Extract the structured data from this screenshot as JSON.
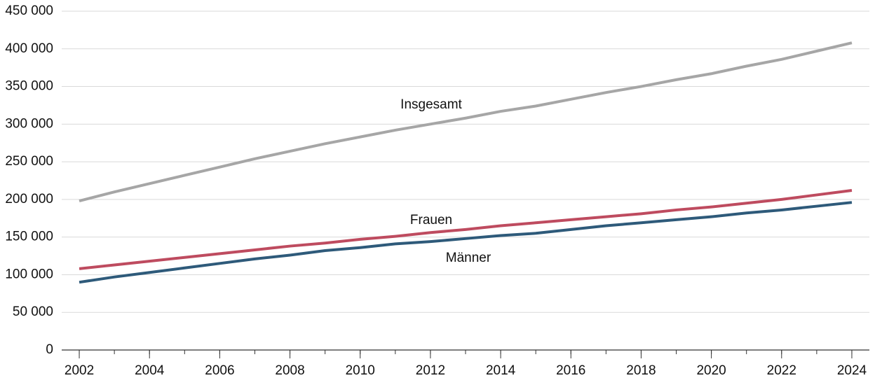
{
  "chart_data": {
    "type": "line",
    "x": [
      2002,
      2003,
      2004,
      2005,
      2006,
      2007,
      2008,
      2009,
      2010,
      2011,
      2012,
      2013,
      2014,
      2015,
      2016,
      2017,
      2018,
      2019,
      2020,
      2021,
      2022,
      2023,
      2024
    ],
    "series": [
      {
        "name": "Insgesamt",
        "color": "#a6a6a6",
        "values": [
          198000,
          210000,
          221000,
          232000,
          243000,
          254000,
          264000,
          274000,
          283000,
          292000,
          300000,
          308000,
          317000,
          324000,
          333000,
          342000,
          350000,
          359000,
          367000,
          377000,
          386000,
          397000,
          408000
        ]
      },
      {
        "name": "Frauen",
        "color": "#be4b5f",
        "values": [
          108000,
          113000,
          118000,
          123000,
          128000,
          133000,
          138000,
          142000,
          147000,
          151000,
          156000,
          160000,
          165000,
          169000,
          173000,
          177000,
          181000,
          186000,
          190000,
          195000,
          200000,
          206000,
          212000
        ]
      },
      {
        "name": "Männer",
        "color": "#2e5a7a",
        "values": [
          90000,
          97000,
          103000,
          109000,
          115000,
          121000,
          126000,
          132000,
          136000,
          141000,
          144000,
          148000,
          152000,
          155000,
          160000,
          165000,
          169000,
          173000,
          177000,
          182000,
          186000,
          191000,
          196000
        ]
      }
    ],
    "xlim": [
      2001.5,
      2024.5
    ],
    "xticks": [
      2002,
      2004,
      2006,
      2008,
      2010,
      2012,
      2014,
      2016,
      2018,
      2020,
      2022,
      2024
    ],
    "ylim": [
      0,
      450000
    ],
    "yticks": [
      0,
      {
        "value": 50000,
        "label": "50 000"
      },
      {
        "value": 100000,
        "label": "100 000"
      },
      {
        "value": 150000,
        "label": "150 000"
      },
      {
        "value": 200000,
        "label": "200 000"
      },
      {
        "value": 250000,
        "label": "250 000"
      },
      {
        "value": 300000,
        "label": "300 000"
      },
      {
        "value": 350000,
        "label": "350 000"
      },
      {
        "value": 400000,
        "label": "400 000"
      },
      {
        "value": 450000,
        "label": "450 000"
      }
    ],
    "grid": true
  }
}
